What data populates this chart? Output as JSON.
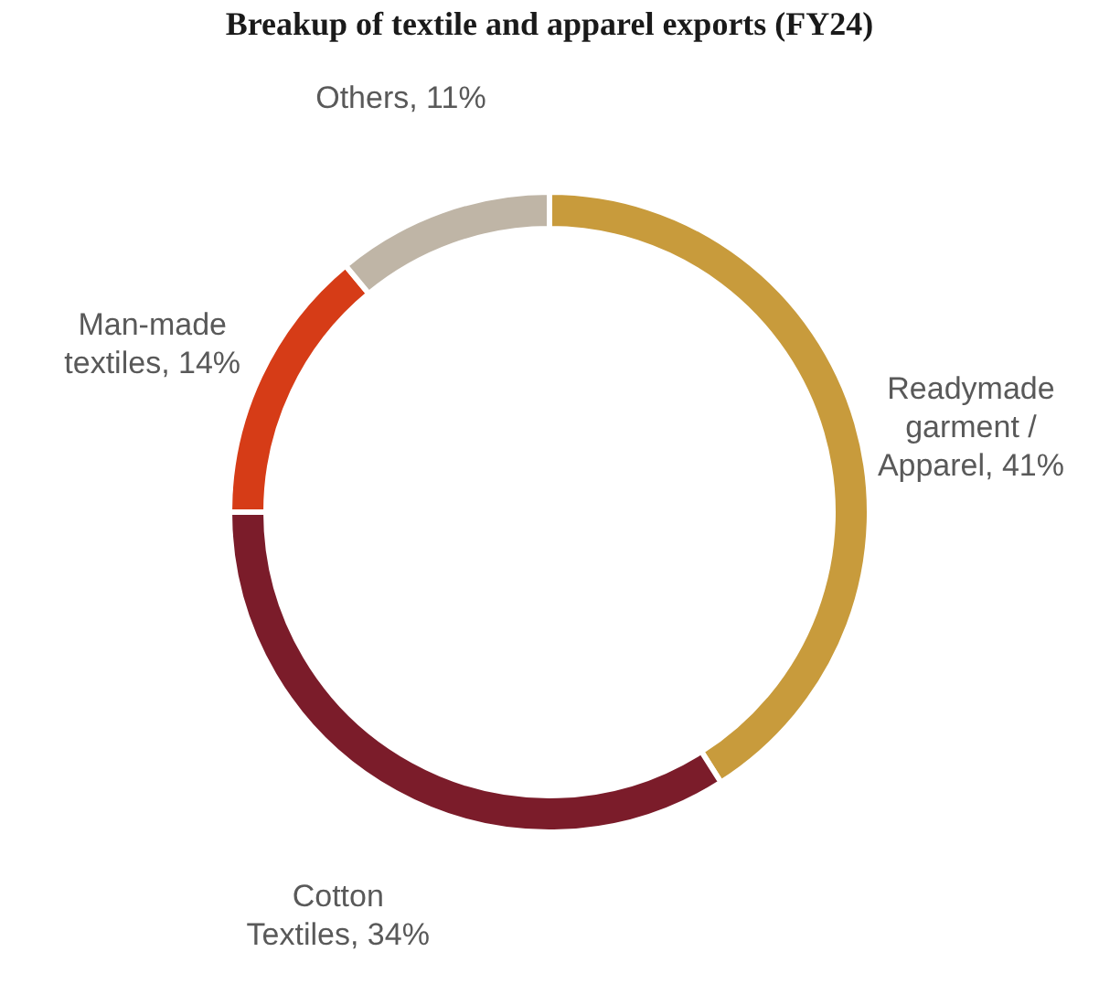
{
  "chart_data": {
    "type": "donut",
    "title": "Breakup of textile and apparel exports (FY24)",
    "categories": [
      "Readymade garment / Apparel",
      "Cotton Textiles",
      "Man-made textiles",
      "Others"
    ],
    "values": [
      41,
      34,
      14,
      11
    ],
    "value_labels": [
      "41%",
      "34%",
      "14%",
      "11%"
    ],
    "colors": [
      "#c89b3c",
      "#7b1c2a",
      "#d63c17",
      "#bfb5a6"
    ],
    "legend": false
  }
}
